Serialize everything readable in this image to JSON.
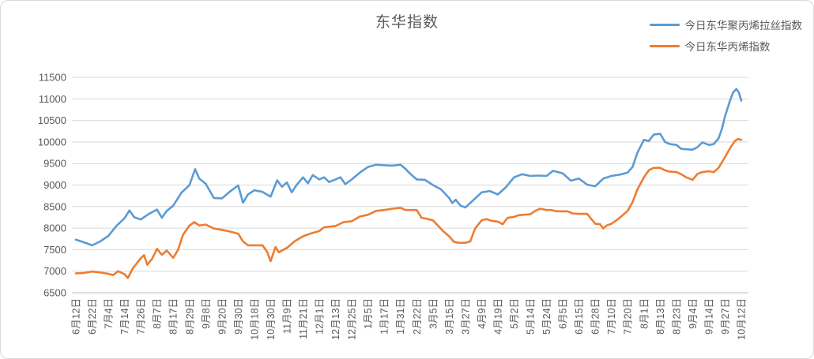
{
  "chart_data": {
    "type": "line",
    "title": "东华指数",
    "xlabel": "",
    "ylabel": "",
    "ylim": [
      6500,
      11500
    ],
    "y_ticks": [
      6500,
      7000,
      7500,
      8000,
      8500,
      9000,
      9500,
      10000,
      10500,
      11000,
      11500
    ],
    "grid": "horizontal",
    "grid_color": "#D9D9D9",
    "axis_color": "#BFBFBF",
    "text_color": "#595959",
    "legend_position": "top-right",
    "x_tick_labels": [
      "6月12日",
      "6月22日",
      "7月4日",
      "7月14日",
      "7月26日",
      "8月7日",
      "8月17日",
      "8月29日",
      "9月8日",
      "9月20日",
      "9月30日",
      "10月18日",
      "10月30日",
      "11月9日",
      "11月21日",
      "12月1日",
      "12月13日",
      "12月25日",
      "1月5日",
      "1月17日",
      "1月31日",
      "2月22日",
      "3月5日",
      "3月15日",
      "3月27日",
      "4月9日",
      "4月19日",
      "5月2日",
      "5月14日",
      "5月24日",
      "6月5日",
      "6月15日",
      "6月28日",
      "7月10日",
      "7月20日",
      "8月1日",
      "8月13日",
      "8月23日",
      "9月4日",
      "9月14日",
      "9月27日",
      "10月12日"
    ],
    "series": [
      {
        "name": "今日东华聚丙烯拉丝指数",
        "color": "#5B9BD5",
        "points": [
          [
            0,
            7730
          ],
          [
            0.5,
            7670
          ],
          [
            1,
            7600
          ],
          [
            1.5,
            7690
          ],
          [
            2,
            7820
          ],
          [
            2.5,
            8050
          ],
          [
            3,
            8230
          ],
          [
            3.3,
            8410
          ],
          [
            3.6,
            8250
          ],
          [
            4,
            8200
          ],
          [
            4.5,
            8330
          ],
          [
            5,
            8430
          ],
          [
            5.3,
            8240
          ],
          [
            5.6,
            8400
          ],
          [
            6,
            8520
          ],
          [
            6.5,
            8820
          ],
          [
            7,
            9000
          ],
          [
            7.35,
            9370
          ],
          [
            7.6,
            9150
          ],
          [
            8,
            9030
          ],
          [
            8.5,
            8700
          ],
          [
            9,
            8690
          ],
          [
            9.5,
            8850
          ],
          [
            10,
            8990
          ],
          [
            10.3,
            8590
          ],
          [
            10.6,
            8780
          ],
          [
            11,
            8880
          ],
          [
            11.5,
            8840
          ],
          [
            12,
            8730
          ],
          [
            12.4,
            9110
          ],
          [
            12.7,
            8960
          ],
          [
            13,
            9060
          ],
          [
            13.3,
            8830
          ],
          [
            13.6,
            9000
          ],
          [
            14,
            9180
          ],
          [
            14.3,
            9040
          ],
          [
            14.6,
            9230
          ],
          [
            15,
            9130
          ],
          [
            15.3,
            9180
          ],
          [
            15.6,
            9070
          ],
          [
            16,
            9130
          ],
          [
            16.3,
            9180
          ],
          [
            16.6,
            9020
          ],
          [
            17,
            9130
          ],
          [
            17.5,
            9290
          ],
          [
            18,
            9420
          ],
          [
            18.5,
            9470
          ],
          [
            19,
            9460
          ],
          [
            19.5,
            9450
          ],
          [
            20,
            9470
          ],
          [
            20.3,
            9380
          ],
          [
            20.6,
            9260
          ],
          [
            21,
            9130
          ],
          [
            21.5,
            9120
          ],
          [
            22,
            9000
          ],
          [
            22.5,
            8900
          ],
          [
            23,
            8700
          ],
          [
            23.2,
            8580
          ],
          [
            23.4,
            8660
          ],
          [
            23.7,
            8520
          ],
          [
            24,
            8480
          ],
          [
            24.5,
            8650
          ],
          [
            25,
            8830
          ],
          [
            25.5,
            8860
          ],
          [
            26,
            8780
          ],
          [
            26.5,
            8950
          ],
          [
            27,
            9180
          ],
          [
            27.5,
            9250
          ],
          [
            28,
            9210
          ],
          [
            28.5,
            9220
          ],
          [
            29,
            9210
          ],
          [
            29.4,
            9330
          ],
          [
            30,
            9270
          ],
          [
            30.5,
            9100
          ],
          [
            31,
            9150
          ],
          [
            31.5,
            9010
          ],
          [
            32,
            8970
          ],
          [
            32.5,
            9150
          ],
          [
            33,
            9210
          ],
          [
            33.5,
            9240
          ],
          [
            34,
            9290
          ],
          [
            34.3,
            9420
          ],
          [
            34.6,
            9750
          ],
          [
            35,
            10050
          ],
          [
            35.3,
            10020
          ],
          [
            35.6,
            10170
          ],
          [
            36,
            10190
          ],
          [
            36.3,
            10000
          ],
          [
            36.6,
            9950
          ],
          [
            37,
            9930
          ],
          [
            37.3,
            9840
          ],
          [
            37.6,
            9830
          ],
          [
            38,
            9820
          ],
          [
            38.3,
            9880
          ],
          [
            38.6,
            9990
          ],
          [
            39,
            9930
          ],
          [
            39.3,
            9950
          ],
          [
            39.6,
            10080
          ],
          [
            39.8,
            10300
          ],
          [
            40,
            10600
          ],
          [
            40.3,
            10950
          ],
          [
            40.5,
            11150
          ],
          [
            40.7,
            11230
          ],
          [
            40.85,
            11150
          ],
          [
            41,
            10960
          ]
        ]
      },
      {
        "name": "今日东华丙烯指数",
        "color": "#ED7D31",
        "points": [
          [
            0,
            6950
          ],
          [
            0.5,
            6960
          ],
          [
            1,
            6990
          ],
          [
            1.5,
            6970
          ],
          [
            2,
            6940
          ],
          [
            2.3,
            6910
          ],
          [
            2.6,
            7000
          ],
          [
            3,
            6930
          ],
          [
            3.2,
            6840
          ],
          [
            3.5,
            7060
          ],
          [
            4,
            7300
          ],
          [
            4.2,
            7370
          ],
          [
            4.4,
            7150
          ],
          [
            4.7,
            7290
          ],
          [
            5,
            7520
          ],
          [
            5.3,
            7380
          ],
          [
            5.6,
            7480
          ],
          [
            6,
            7310
          ],
          [
            6.3,
            7500
          ],
          [
            6.6,
            7840
          ],
          [
            7,
            8060
          ],
          [
            7.3,
            8140
          ],
          [
            7.6,
            8060
          ],
          [
            8,
            8080
          ],
          [
            8.5,
            7990
          ],
          [
            9,
            7960
          ],
          [
            9.5,
            7920
          ],
          [
            10,
            7870
          ],
          [
            10.3,
            7690
          ],
          [
            10.6,
            7600
          ],
          [
            11,
            7600
          ],
          [
            11.5,
            7600
          ],
          [
            11.8,
            7440
          ],
          [
            12,
            7230
          ],
          [
            12.3,
            7560
          ],
          [
            12.5,
            7440
          ],
          [
            13,
            7540
          ],
          [
            13.5,
            7700
          ],
          [
            14,
            7810
          ],
          [
            14.5,
            7880
          ],
          [
            15,
            7930
          ],
          [
            15.3,
            8020
          ],
          [
            16,
            8050
          ],
          [
            16.5,
            8140
          ],
          [
            17,
            8160
          ],
          [
            17.5,
            8270
          ],
          [
            18,
            8310
          ],
          [
            18.5,
            8400
          ],
          [
            19,
            8420
          ],
          [
            19.5,
            8450
          ],
          [
            20,
            8470
          ],
          [
            20.3,
            8420
          ],
          [
            21,
            8420
          ],
          [
            21.3,
            8240
          ],
          [
            21.6,
            8220
          ],
          [
            22,
            8180
          ],
          [
            22.3,
            8060
          ],
          [
            22.6,
            7940
          ],
          [
            23,
            7810
          ],
          [
            23.3,
            7680
          ],
          [
            23.6,
            7660
          ],
          [
            24,
            7660
          ],
          [
            24.3,
            7690
          ],
          [
            24.6,
            7990
          ],
          [
            25,
            8180
          ],
          [
            25.3,
            8210
          ],
          [
            25.6,
            8170
          ],
          [
            26,
            8150
          ],
          [
            26.3,
            8090
          ],
          [
            26.6,
            8240
          ],
          [
            27,
            8260
          ],
          [
            27.3,
            8300
          ],
          [
            27.6,
            8310
          ],
          [
            28,
            8320
          ],
          [
            28.3,
            8400
          ],
          [
            28.6,
            8450
          ],
          [
            29,
            8420
          ],
          [
            29.3,
            8420
          ],
          [
            29.6,
            8390
          ],
          [
            30,
            8390
          ],
          [
            30.3,
            8390
          ],
          [
            30.6,
            8340
          ],
          [
            31,
            8330
          ],
          [
            31.5,
            8330
          ],
          [
            32,
            8100
          ],
          [
            32.3,
            8090
          ],
          [
            32.5,
            7990
          ],
          [
            32.7,
            8060
          ],
          [
            33,
            8100
          ],
          [
            33.3,
            8180
          ],
          [
            33.6,
            8270
          ],
          [
            34,
            8400
          ],
          [
            34.3,
            8600
          ],
          [
            34.6,
            8900
          ],
          [
            35,
            9180
          ],
          [
            35.3,
            9340
          ],
          [
            35.6,
            9400
          ],
          [
            36,
            9400
          ],
          [
            36.3,
            9340
          ],
          [
            36.6,
            9310
          ],
          [
            37,
            9300
          ],
          [
            37.3,
            9250
          ],
          [
            37.6,
            9180
          ],
          [
            38,
            9120
          ],
          [
            38.3,
            9260
          ],
          [
            38.6,
            9300
          ],
          [
            39,
            9320
          ],
          [
            39.3,
            9300
          ],
          [
            39.6,
            9400
          ],
          [
            40,
            9650
          ],
          [
            40.3,
            9850
          ],
          [
            40.6,
            10020
          ],
          [
            40.8,
            10070
          ],
          [
            41,
            10050
          ]
        ]
      }
    ]
  }
}
